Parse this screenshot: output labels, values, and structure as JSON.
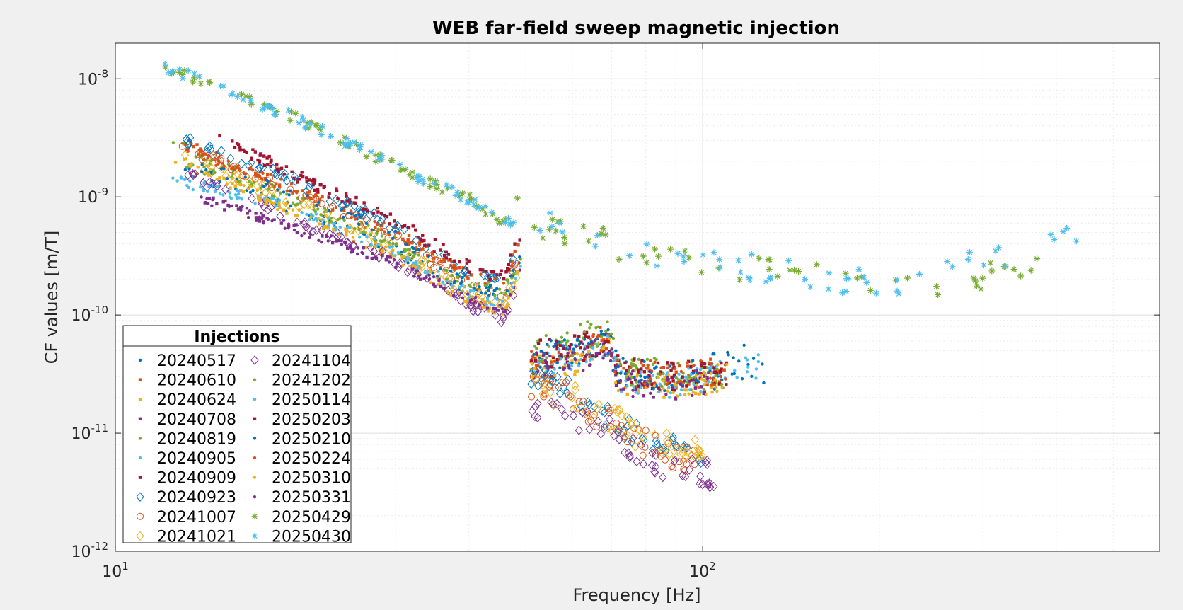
{
  "chart_data": {
    "type": "scatter",
    "title": "WEB far-field sweep magnetic injection",
    "xlabel": "Frequency [Hz]",
    "ylabel": "CF values [m/T]",
    "xscale": "log",
    "yscale": "log",
    "xlim": [
      10,
      600
    ],
    "ylim": [
      1e-12,
      2e-08
    ],
    "x_ticks": [
      {
        "value": 10,
        "base": "10",
        "exp": "1"
      },
      {
        "value": 100,
        "base": "10",
        "exp": "2"
      }
    ],
    "y_ticks": [
      {
        "value": 1e-08,
        "base": "10",
        "exp": "-8"
      },
      {
        "value": 1e-09,
        "base": "10",
        "exp": "-9"
      },
      {
        "value": 1e-10,
        "base": "10",
        "exp": "-10"
      },
      {
        "value": 1e-11,
        "base": "10",
        "exp": "-11"
      },
      {
        "value": 1e-12,
        "base": "10",
        "exp": "-12"
      }
    ],
    "grid": true,
    "minor_grid": true,
    "legend": {
      "title": "Injections",
      "location": "bottom-left",
      "columns": 2
    },
    "series": [
      {
        "name": "20240517",
        "marker": "dot",
        "color": "#0072BD",
        "low": [
          [
            13,
            1.8e-09
          ],
          [
            20,
            8e-10
          ],
          [
            30,
            3.5e-10
          ],
          [
            40,
            1.6e-10
          ],
          [
            46,
            1.3e-10
          ],
          [
            49,
            3e-10
          ]
        ],
        "high": [
          [
            51,
            4.2e-11
          ],
          [
            60,
            4.5e-11
          ],
          [
            69,
            6e-11
          ],
          [
            72,
            3.2e-11
          ],
          [
            90,
            2.8e-11
          ],
          [
            130,
            3.5e-11
          ]
        ]
      },
      {
        "name": "20240610",
        "marker": "square",
        "color": "#D95319",
        "low": [
          [
            13,
            2.8e-09
          ],
          [
            20,
            1.2e-09
          ],
          [
            30,
            5e-10
          ],
          [
            40,
            2.2e-10
          ],
          [
            46,
            2e-10
          ],
          [
            49,
            4.5e-10
          ]
        ],
        "high": [
          [
            51,
            4.5e-11
          ],
          [
            60,
            4.8e-11
          ],
          [
            69,
            6.5e-11
          ],
          [
            72,
            3.3e-11
          ],
          [
            90,
            3e-11
          ],
          [
            110,
            3.4e-11
          ]
        ]
      },
      {
        "name": "20240624",
        "marker": "square",
        "color": "#EDB120",
        "low": [
          [
            12.5,
            2.1e-09
          ],
          [
            20,
            7.5e-10
          ],
          [
            30,
            3.2e-10
          ],
          [
            40,
            1.3e-10
          ],
          [
            46,
            1.1e-10
          ],
          [
            49,
            2.6e-10
          ]
        ],
        "high": [
          [
            51,
            3.5e-11
          ],
          [
            60,
            4e-11
          ],
          [
            69,
            5.5e-11
          ],
          [
            72,
            2.8e-11
          ],
          [
            90,
            2.5e-11
          ],
          [
            110,
            3e-11
          ]
        ]
      },
      {
        "name": "20240708",
        "marker": "square",
        "color": "#7E2F8E",
        "low": [
          [
            14,
            1e-09
          ],
          [
            20,
            5.5e-10
          ],
          [
            30,
            2.8e-10
          ],
          [
            40,
            1.4e-10
          ],
          [
            46,
            1.1e-10
          ],
          [
            49,
            2.5e-10
          ]
        ],
        "high": [
          [
            51,
            3.8e-11
          ],
          [
            60,
            4e-11
          ],
          [
            69,
            5.5e-11
          ],
          [
            72,
            2.7e-11
          ],
          [
            90,
            2.5e-11
          ],
          [
            105,
            2.8e-11
          ]
        ]
      },
      {
        "name": "20240819",
        "marker": "dot",
        "color": "#77AC30",
        "low": [
          [
            12.5,
            2.9e-09
          ],
          [
            20,
            1e-09
          ],
          [
            30,
            4.2e-10
          ],
          [
            40,
            1.9e-10
          ],
          [
            46,
            1.7e-10
          ],
          [
            49,
            3.5e-10
          ]
        ],
        "high": [
          [
            51,
            5e-11
          ],
          [
            60,
            6e-11
          ],
          [
            69,
            8.5e-11
          ],
          [
            72,
            3.5e-11
          ],
          [
            90,
            3.2e-11
          ],
          [
            110,
            3e-11
          ]
        ]
      },
      {
        "name": "20240905",
        "marker": "dot",
        "color": "#4DBEEE",
        "low": [
          [
            12.5,
            1.5e-09
          ],
          [
            20,
            8e-10
          ],
          [
            30,
            3.5e-10
          ],
          [
            40,
            1.5e-10
          ],
          [
            46,
            1.2e-10
          ],
          [
            49,
            2.8e-10
          ]
        ],
        "high": [
          [
            51,
            3.6e-11
          ],
          [
            60,
            4.2e-11
          ],
          [
            69,
            5.6e-11
          ],
          [
            72,
            2.9e-11
          ],
          [
            90,
            2.6e-11
          ],
          [
            125,
            3.9e-11
          ]
        ]
      },
      {
        "name": "20240909",
        "marker": "square",
        "color": "#A2142F",
        "low": [
          [
            15,
            3.2e-09
          ],
          [
            20,
            1.6e-09
          ],
          [
            30,
            6.5e-10
          ],
          [
            40,
            2.6e-10
          ],
          [
            46,
            2.2e-10
          ],
          [
            49,
            5e-10
          ]
        ],
        "high": [
          [
            51,
            4.6e-11
          ],
          [
            60,
            5e-11
          ],
          [
            69,
            6.5e-11
          ],
          [
            72,
            3.3e-11
          ],
          [
            90,
            3e-11
          ],
          [
            110,
            3.3e-11
          ]
        ]
      },
      {
        "name": "20240923",
        "marker": "diamond",
        "color": "#0072BD",
        "low": [
          [
            13,
            3.1e-09
          ],
          [
            20,
            1.4e-09
          ],
          [
            30,
            5.5e-10
          ],
          [
            40,
            2.2e-10
          ],
          [
            46,
            1.8e-10
          ],
          [
            49,
            4e-10
          ]
        ],
        "high": [
          [
            51,
            3.2e-11
          ],
          [
            60,
            2.2e-11
          ],
          [
            70,
            1.2e-11
          ],
          [
            80,
            9e-12
          ],
          [
            90,
            7e-12
          ],
          [
            100,
            7e-12
          ]
        ]
      },
      {
        "name": "20241007",
        "marker": "circle",
        "color": "#D95319",
        "low": [
          [
            13,
            2.7e-09
          ],
          [
            20,
            1.1e-09
          ],
          [
            30,
            4.5e-10
          ],
          [
            40,
            1.8e-10
          ],
          [
            46,
            1.5e-10
          ],
          [
            49,
            3.4e-10
          ]
        ],
        "high": [
          [
            51,
            2.6e-11
          ],
          [
            60,
            2e-11
          ],
          [
            70,
            1.2e-11
          ],
          [
            80,
            8e-12
          ],
          [
            90,
            6e-12
          ],
          [
            100,
            6e-12
          ]
        ]
      },
      {
        "name": "20241021",
        "marker": "diamond",
        "color": "#EDB120",
        "low": [
          [
            13,
            2.2e-09
          ],
          [
            20,
            9e-10
          ],
          [
            30,
            3.8e-10
          ],
          [
            40,
            1.5e-10
          ],
          [
            46,
            1.2e-10
          ],
          [
            49,
            2.8e-10
          ]
        ],
        "high": [
          [
            51,
            2.4e-11
          ],
          [
            60,
            2e-11
          ],
          [
            70,
            1.3e-11
          ],
          [
            80,
            9e-12
          ],
          [
            90,
            8e-12
          ],
          [
            100,
            7e-12
          ]
        ]
      },
      {
        "name": "20241104",
        "marker": "diamond",
        "color": "#7E2F8E",
        "low": [
          [
            13,
            1.6e-09
          ],
          [
            20,
            6.5e-10
          ],
          [
            30,
            2.9e-10
          ],
          [
            40,
            1.2e-10
          ],
          [
            46,
            9e-11
          ],
          [
            49,
            2e-10
          ]
        ],
        "high": [
          [
            51,
            1.6e-11
          ],
          [
            60,
            1.3e-11
          ],
          [
            70,
            1e-11
          ],
          [
            80,
            6e-12
          ],
          [
            90,
            5e-12
          ],
          [
            105,
            4.5e-12
          ]
        ]
      },
      {
        "name": "20241202",
        "marker": "dot",
        "color": "#77AC30",
        "low": [
          [
            13,
            2e-09
          ],
          [
            20,
            9e-10
          ],
          [
            30,
            3.8e-10
          ],
          [
            40,
            1.7e-10
          ],
          [
            46,
            1.6e-10
          ],
          [
            49,
            3.2e-10
          ]
        ],
        "high": [
          [
            51,
            4.5e-11
          ],
          [
            60,
            5.5e-11
          ],
          [
            69,
            7.5e-11
          ],
          [
            72,
            3.4e-11
          ],
          [
            90,
            3.1e-11
          ],
          [
            110,
            2.6e-11
          ]
        ]
      },
      {
        "name": "20250114",
        "marker": "dot",
        "color": "#4DBEEE",
        "low": [
          [
            12.5,
            1.4e-09
          ],
          [
            20,
            8e-10
          ],
          [
            30,
            3.5e-10
          ],
          [
            40,
            1.5e-10
          ],
          [
            46,
            1.2e-10
          ],
          [
            49,
            2.8e-10
          ]
        ],
        "high": [
          [
            51,
            3.6e-11
          ],
          [
            60,
            4.2e-11
          ],
          [
            69,
            5.6e-11
          ],
          [
            72,
            2.9e-11
          ],
          [
            90,
            2.6e-11
          ],
          [
            125,
            3.7e-11
          ]
        ]
      },
      {
        "name": "20250203",
        "marker": "square",
        "color": "#A2142F",
        "low": [
          [
            15,
            3.2e-09
          ],
          [
            20,
            1.5e-09
          ],
          [
            30,
            6.2e-10
          ],
          [
            40,
            2.4e-10
          ],
          [
            46,
            2e-10
          ],
          [
            49,
            4.8e-10
          ]
        ],
        "high": [
          [
            51,
            4.6e-11
          ],
          [
            60,
            5e-11
          ],
          [
            69,
            6.4e-11
          ],
          [
            72,
            3.3e-11
          ],
          [
            90,
            3e-11
          ],
          [
            110,
            3.3e-11
          ]
        ]
      },
      {
        "name": "20250210",
        "marker": "dot",
        "color": "#0072BD",
        "low": [
          [
            13,
            2e-09
          ],
          [
            20,
            1.1e-09
          ],
          [
            30,
            4.8e-10
          ],
          [
            40,
            1.8e-10
          ],
          [
            46,
            1.5e-10
          ],
          [
            49,
            3.5e-10
          ]
        ],
        "high": [
          [
            51,
            4.4e-11
          ],
          [
            60,
            5e-11
          ],
          [
            69,
            6e-11
          ],
          [
            72,
            3.3e-11
          ],
          [
            90,
            2.9e-11
          ],
          [
            120,
            4.5e-11
          ]
        ]
      },
      {
        "name": "20250224",
        "marker": "dot",
        "color": "#D95319",
        "low": [
          [
            13,
            2.6e-09
          ],
          [
            20,
            1.2e-09
          ],
          [
            30,
            5e-10
          ],
          [
            40,
            2.1e-10
          ],
          [
            46,
            1.9e-10
          ],
          [
            49,
            4.5e-10
          ]
        ],
        "high": [
          [
            51,
            4.5e-11
          ],
          [
            60,
            4.8e-11
          ],
          [
            69,
            6.5e-11
          ],
          [
            72,
            3.3e-11
          ],
          [
            90,
            3e-11
          ],
          [
            110,
            3.4e-11
          ]
        ]
      },
      {
        "name": "20250310",
        "marker": "dot",
        "color": "#EDB120",
        "low": [
          [
            13,
            2.1e-09
          ],
          [
            20,
            7.5e-10
          ],
          [
            30,
            3.2e-10
          ],
          [
            40,
            1.3e-10
          ],
          [
            46,
            1.1e-10
          ],
          [
            49,
            2.6e-10
          ]
        ],
        "high": [
          [
            51,
            3.5e-11
          ],
          [
            60,
            4e-11
          ],
          [
            69,
            5.5e-11
          ],
          [
            72,
            2.8e-11
          ],
          [
            90,
            2.5e-11
          ],
          [
            110,
            3e-11
          ]
        ]
      },
      {
        "name": "20250331",
        "marker": "dot",
        "color": "#7E2F8E",
        "low": [
          [
            14,
            1e-09
          ],
          [
            20,
            5.5e-10
          ],
          [
            30,
            2.8e-10
          ],
          [
            40,
            1.4e-10
          ],
          [
            46,
            1.1e-10
          ],
          [
            49,
            2.5e-10
          ]
        ],
        "high": [
          [
            51,
            3.8e-11
          ],
          [
            60,
            4e-11
          ],
          [
            69,
            5.5e-11
          ],
          [
            72,
            2.7e-11
          ],
          [
            90,
            2.5e-11
          ],
          [
            105,
            2.8e-11
          ]
        ]
      },
      {
        "name": "20250429",
        "marker": "asterisk",
        "color": "#77AC30",
        "low": [
          [
            12,
            1.3e-08
          ],
          [
            20,
            4.8e-09
          ],
          [
            30,
            1.8e-09
          ],
          [
            40,
            9.5e-10
          ],
          [
            48,
            5.5e-10
          ],
          [
            48.5,
            1.2e-09
          ]
        ],
        "high": [
          [
            51,
            6.5e-10
          ],
          [
            60,
            4.6e-10
          ],
          [
            70,
            4e-10
          ],
          [
            100,
            2.8e-10
          ],
          [
            200,
            1.7e-10
          ],
          [
            400,
            2.5e-10
          ]
        ]
      },
      {
        "name": "20250430",
        "marker": "asterisk",
        "color": "#4DBEEE",
        "low": [
          [
            12,
            1.3e-08
          ],
          [
            20,
            4.8e-09
          ],
          [
            30,
            1.8e-09
          ],
          [
            40,
            9.5e-10
          ],
          [
            48,
            5.5e-10
          ],
          [
            48.5,
            1.25e-09
          ]
        ],
        "high": [
          [
            51,
            6.5e-10
          ],
          [
            60,
            4.6e-10
          ],
          [
            70,
            4e-10
          ],
          [
            100,
            2.8e-10
          ],
          [
            200,
            1.8e-10
          ],
          [
            450,
            5e-10
          ]
        ]
      }
    ]
  }
}
